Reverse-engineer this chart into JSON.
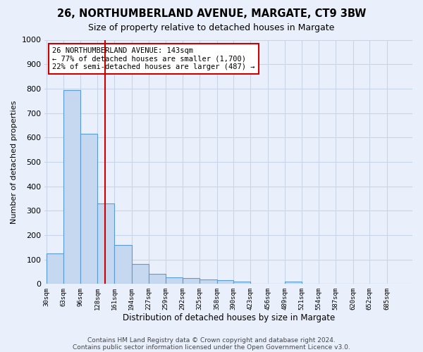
{
  "title1": "26, NORTHUMBERLAND AVENUE, MARGATE, CT9 3BW",
  "title2": "Size of property relative to detached houses in Margate",
  "xlabel": "Distribution of detached houses by size in Margate",
  "ylabel": "Number of detached properties",
  "bin_edges": [
    30,
    63,
    96,
    128,
    161,
    194,
    227,
    259,
    292,
    325,
    358,
    390,
    423,
    456,
    489,
    521,
    554,
    587,
    620,
    652,
    685
  ],
  "values": [
    125,
    795,
    615,
    328,
    160,
    80,
    40,
    27,
    23,
    18,
    15,
    8,
    0,
    0,
    10,
    0,
    0,
    0,
    0,
    0
  ],
  "bar_color": "#c5d8f0",
  "bar_edge_color": "#5b9bd5",
  "vline_x": 143,
  "vline_color": "#cc0000",
  "annotation_text": "26 NORTHUMBERLAND AVENUE: 143sqm\n← 77% of detached houses are smaller (1,700)\n22% of semi-detached houses are larger (487) →",
  "annotation_box_color": "white",
  "annotation_box_edge": "#cc0000",
  "ylim": [
    0,
    1000
  ],
  "yticks": [
    0,
    100,
    200,
    300,
    400,
    500,
    600,
    700,
    800,
    900,
    1000
  ],
  "footer1": "Contains HM Land Registry data © Crown copyright and database right 2024.",
  "footer2": "Contains public sector information licensed under the Open Government Licence v3.0.",
  "bg_color": "#eaf0fb",
  "grid_color": "#c8d4e8",
  "title_fontsize": 10.5,
  "subtitle_fontsize": 9
}
